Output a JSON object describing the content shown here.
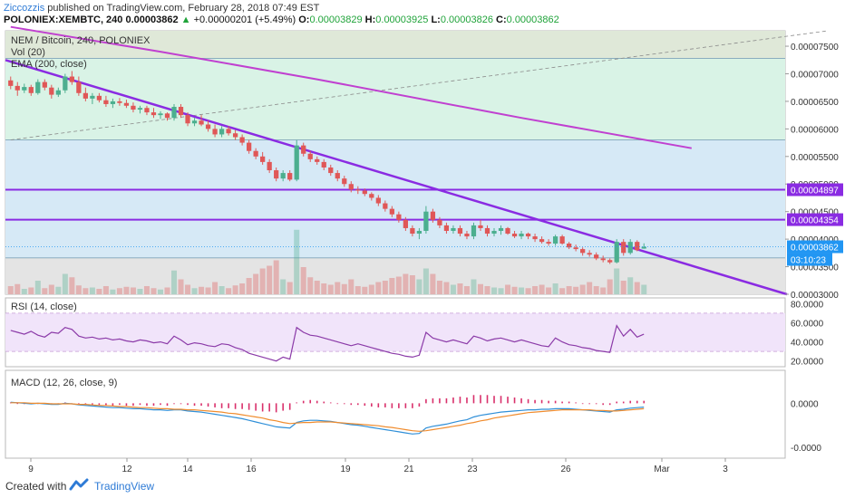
{
  "header": {
    "author": "Ziccozzis",
    "published": " published on TradingView.com, February 28, 2018 07:49 EST",
    "symbol": "POLONIEX:XEMBTC, 240",
    "price": "0.00003862",
    "change": "+0.00000201 (+5.49%)",
    "o_label": "O:",
    "o_value": "0.00003829",
    "h_label": "H:",
    "h_value": "0.00003925",
    "l_label": "L:",
    "l_value": "0.00003826",
    "c_label": "C:",
    "c_value": "0.00003862"
  },
  "footer": {
    "created_with": "Created with",
    "brand": "TradingView"
  },
  "colors": {
    "up": "#4caf8f",
    "down": "#e05757",
    "trend": "#8a2be2",
    "ema": "#c040d0",
    "price_tag": "#2196f3",
    "rsi": "#8b3aa8",
    "macd": "#2f8fd8",
    "signal": "#f08c2e"
  },
  "chart_data": [
    {
      "type": "candlestick",
      "title": "NEM / Bitcoin, 240, POLONIEX",
      "indicator_labels": [
        "Vol (20)",
        "EMA (200, close)"
      ],
      "x_ticks": [
        "9",
        "12",
        "14",
        "16",
        "19",
        "21",
        "23",
        "26",
        "Mar",
        "3"
      ],
      "y_ticks": [
        "0.00007500",
        "0.00007000",
        "0.00006500",
        "0.00006000",
        "0.00005500",
        "0.00005000",
        "0.00004500",
        "0.00004000",
        "0.00003500",
        "0.00003000"
      ],
      "ylim": [
        3e-05,
        7.78e-05
      ],
      "price_tags": [
        "0.00004897",
        "0.00004354",
        "0.00003862",
        "03:10:23"
      ],
      "horizontal_levels": [
        4.897e-05,
        4.354e-05
      ],
      "zone_lines": [
        7.28e-05,
        5.8e-05,
        3.66e-05
      ],
      "candles": [
        [
          6.88e-05,
          6.95e-05,
          6.72e-05,
          6.78e-05
        ],
        [
          6.78e-05,
          6.85e-05,
          6.6e-05,
          6.7e-05
        ],
        [
          6.7e-05,
          6.82e-05,
          6.65e-05,
          6.76e-05
        ],
        [
          6.76e-05,
          6.8e-05,
          6.6e-05,
          6.65e-05
        ],
        [
          6.65e-05,
          6.9e-05,
          6.62e-05,
          6.85e-05
        ],
        [
          6.85e-05,
          6.9e-05,
          6.7e-05,
          6.75e-05
        ],
        [
          6.75e-05,
          6.8e-05,
          6.55e-05,
          6.62e-05
        ],
        [
          6.62e-05,
          6.75e-05,
          6.58e-05,
          6.7e-05
        ],
        [
          6.7e-05,
          7e-05,
          6.65e-05,
          6.95e-05
        ],
        [
          6.95e-05,
          7.05e-05,
          6.8e-05,
          6.85e-05
        ],
        [
          6.85e-05,
          6.95e-05,
          6.6e-05,
          6.65e-05
        ],
        [
          6.65e-05,
          6.75e-05,
          6.5e-05,
          6.55e-05
        ],
        [
          6.55e-05,
          6.65e-05,
          6.45e-05,
          6.6e-05
        ],
        [
          6.6e-05,
          6.65e-05,
          6.48e-05,
          6.52e-05
        ],
        [
          6.52e-05,
          6.6e-05,
          6.4e-05,
          6.45e-05
        ],
        [
          6.45e-05,
          6.55e-05,
          6.38e-05,
          6.5e-05
        ],
        [
          6.5e-05,
          6.56e-05,
          6.42e-05,
          6.47e-05
        ],
        [
          6.47e-05,
          6.53e-05,
          6.38e-05,
          6.42e-05
        ],
        [
          6.42e-05,
          6.48e-05,
          6.3e-05,
          6.35e-05
        ],
        [
          6.35e-05,
          6.42e-05,
          6.28e-05,
          6.38e-05
        ],
        [
          6.38e-05,
          6.42e-05,
          6.25e-05,
          6.3e-05
        ],
        [
          6.3e-05,
          6.38e-05,
          6.2e-05,
          6.25e-05
        ],
        [
          6.25e-05,
          6.32e-05,
          6.18e-05,
          6.28e-05
        ],
        [
          6.28e-05,
          6.3e-05,
          6.15e-05,
          6.2e-05
        ],
        [
          6.2e-05,
          6.45e-05,
          6.15e-05,
          6.4e-05
        ],
        [
          6.4e-05,
          6.45e-05,
          6.2e-05,
          6.25e-05
        ],
        [
          6.25e-05,
          6.3e-05,
          6.05e-05,
          6.1e-05
        ],
        [
          6.1e-05,
          6.2e-05,
          6.05e-05,
          6.15e-05
        ],
        [
          6.15e-05,
          6.25e-05,
          6.05e-05,
          6.08e-05
        ],
        [
          6.08e-05,
          6.15e-05,
          5.95e-05,
          6e-05
        ],
        [
          6e-05,
          6.08e-05,
          5.85e-05,
          5.9e-05
        ],
        [
          5.9e-05,
          6.05e-05,
          5.85e-05,
          6e-05
        ],
        [
          6e-05,
          6.05e-05,
          5.88e-05,
          5.92e-05
        ],
        [
          5.92e-05,
          5.98e-05,
          5.8e-05,
          5.85e-05
        ],
        [
          5.85e-05,
          5.9e-05,
          5.7e-05,
          5.75e-05
        ],
        [
          5.75e-05,
          5.8e-05,
          5.55e-05,
          5.6e-05
        ],
        [
          5.6e-05,
          5.65e-05,
          5.45e-05,
          5.5e-05
        ],
        [
          5.5e-05,
          5.58e-05,
          5.35e-05,
          5.4e-05
        ],
        [
          5.4e-05,
          5.45e-05,
          5.2e-05,
          5.25e-05
        ],
        [
          5.25e-05,
          5.3e-05,
          5.05e-05,
          5.1e-05
        ],
        [
          5.1e-05,
          5.25e-05,
          5.05e-05,
          5.2e-05
        ],
        [
          5.2e-05,
          5.25e-05,
          5.05e-05,
          5.08e-05
        ],
        [
          5.08e-05,
          5.8e-05,
          5.05e-05,
          5.7e-05
        ],
        [
          5.7e-05,
          5.75e-05,
          5.5e-05,
          5.55e-05
        ],
        [
          5.55e-05,
          5.6e-05,
          5.4e-05,
          5.45e-05
        ],
        [
          5.45e-05,
          5.5e-05,
          5.35e-05,
          5.4e-05
        ],
        [
          5.4e-05,
          5.45e-05,
          5.25e-05,
          5.3e-05
        ],
        [
          5.3e-05,
          5.35e-05,
          5.15e-05,
          5.2e-05
        ],
        [
          5.2e-05,
          5.25e-05,
          5.05e-05,
          5.1e-05
        ],
        [
          5.1e-05,
          5.15e-05,
          4.95e-05,
          5e-05
        ],
        [
          5e-05,
          5.05e-05,
          4.85e-05,
          4.9e-05
        ],
        [
          4.9e-05,
          4.96e-05,
          4.82e-05,
          4.88e-05
        ],
        [
          4.88e-05,
          4.92e-05,
          4.78e-05,
          4.82e-05
        ],
        [
          4.82e-05,
          4.85e-05,
          4.7e-05,
          4.75e-05
        ],
        [
          4.75e-05,
          4.8e-05,
          4.6e-05,
          4.65e-05
        ],
        [
          4.65e-05,
          4.7e-05,
          4.5e-05,
          4.55e-05
        ],
        [
          4.55e-05,
          4.6e-05,
          4.4e-05,
          4.45e-05
        ],
        [
          4.45e-05,
          4.5e-05,
          4.3e-05,
          4.35e-05
        ],
        [
          4.35e-05,
          4.4e-05,
          4.15e-05,
          4.2e-05
        ],
        [
          4.2e-05,
          4.25e-05,
          4.05e-05,
          4.1e-05
        ],
        [
          4.1e-05,
          4.2e-05,
          4e-05,
          4.15e-05
        ],
        [
          4.15e-05,
          4.6e-05,
          4.1e-05,
          4.5e-05
        ],
        [
          4.5e-05,
          4.55e-05,
          4.3e-05,
          4.35e-05
        ],
        [
          4.35e-05,
          4.4e-05,
          4.2e-05,
          4.25e-05
        ],
        [
          4.25e-05,
          4.3e-05,
          4.1e-05,
          4.15e-05
        ],
        [
          4.15e-05,
          4.25e-05,
          4.1e-05,
          4.2e-05
        ],
        [
          4.2e-05,
          4.25e-05,
          4.05e-05,
          4.1e-05
        ],
        [
          4.1e-05,
          4.15e-05,
          4e-05,
          4.05e-05
        ],
        [
          4.05e-05,
          4.3e-05,
          4e-05,
          4.25e-05
        ],
        [
          4.25e-05,
          4.35e-05,
          4.15e-05,
          4.2e-05
        ],
        [
          4.2e-05,
          4.25e-05,
          4.05e-05,
          4.1e-05
        ],
        [
          4.1e-05,
          4.2e-05,
          4.05e-05,
          4.15e-05
        ],
        [
          4.15e-05,
          4.25e-05,
          4.08e-05,
          4.2e-05
        ],
        [
          4.2e-05,
          4.22e-05,
          4.08e-05,
          4.1e-05
        ],
        [
          4.1e-05,
          4.15e-05,
          4.02e-05,
          4.05e-05
        ],
        [
          4.05e-05,
          4.15e-05,
          4e-05,
          4.1e-05
        ],
        [
          4.1e-05,
          4.12e-05,
          4e-05,
          4.05e-05
        ],
        [
          4.05e-05,
          4.1e-05,
          3.95e-05,
          4e-05
        ],
        [
          4e-05,
          4.05e-05,
          3.92e-05,
          3.95e-05
        ],
        [
          3.95e-05,
          4e-05,
          3.88e-05,
          3.92e-05
        ],
        [
          3.92e-05,
          4.08e-05,
          3.88e-05,
          4.05e-05
        ],
        [
          4.05e-05,
          4.08e-05,
          3.9e-05,
          3.92e-05
        ],
        [
          3.92e-05,
          3.95e-05,
          3.82e-05,
          3.85e-05
        ],
        [
          3.85e-05,
          3.9e-05,
          3.78e-05,
          3.82e-05
        ],
        [
          3.82e-05,
          3.85e-05,
          3.7e-05,
          3.75e-05
        ],
        [
          3.75e-05,
          3.8e-05,
          3.68e-05,
          3.72e-05
        ],
        [
          3.72e-05,
          3.76e-05,
          3.62e-05,
          3.65e-05
        ],
        [
          3.65e-05,
          3.7e-05,
          3.58e-05,
          3.62e-05
        ],
        [
          3.62e-05,
          3.65e-05,
          3.55e-05,
          3.58e-05
        ],
        [
          3.58e-05,
          4e-05,
          3.56e-05,
          3.95e-05
        ],
        [
          3.95e-05,
          4e-05,
          3.7e-05,
          3.75e-05
        ],
        [
          3.75e-05,
          4e-05,
          3.72e-05,
          3.95e-05
        ],
        [
          3.95e-05,
          3.98e-05,
          3.78e-05,
          3.8e-05
        ],
        [
          3.829e-05,
          3.925e-05,
          3.826e-05,
          3.862e-05
        ]
      ],
      "volumes": [
        12,
        15,
        8,
        10,
        20,
        9,
        14,
        11,
        30,
        25,
        13,
        9,
        10,
        8,
        12,
        7,
        9,
        11,
        10,
        8,
        12,
        9,
        7,
        10,
        35,
        22,
        14,
        9,
        11,
        10,
        18,
        12,
        9,
        13,
        16,
        24,
        30,
        38,
        42,
        50,
        22,
        18,
        95,
        40,
        25,
        20,
        16,
        14,
        18,
        15,
        22,
        12,
        11,
        14,
        18,
        20,
        24,
        26,
        30,
        28,
        22,
        38,
        30,
        20,
        18,
        14,
        16,
        12,
        22,
        15,
        12,
        10,
        9,
        14,
        11,
        10,
        9,
        12,
        14,
        10,
        16,
        9,
        12,
        11,
        14,
        18,
        12,
        10,
        22,
        38,
        20,
        25,
        18,
        14
      ],
      "ema200": [
        [
          7.85e-05,
          0
        ],
        [
          7.4e-05,
          22
        ],
        [
          6.9e-05,
          45
        ],
        [
          6.2e-05,
          75
        ],
        [
          5.65e-05,
          100
        ]
      ],
      "trendline_main": [
        [
          7.25e-05,
          0
        ],
        [
          3e-05,
          114
        ]
      ],
      "trendline_dashed": [
        [
          5.8e-05,
          0
        ],
        [
          7.78e-05,
          120
        ]
      ]
    },
    {
      "type": "line",
      "title": "RSI (14, close)",
      "y_ticks": [
        "80.0000",
        "60.0000",
        "40.0000",
        "20.0000"
      ],
      "ylim": [
        14,
        86
      ],
      "band": [
        30,
        70
      ],
      "values": [
        52,
        50,
        48,
        51,
        47,
        45,
        50,
        49,
        55,
        53,
        46,
        44,
        45,
        43,
        44,
        42,
        43,
        41,
        40,
        42,
        41,
        39,
        40,
        38,
        46,
        42,
        37,
        39,
        38,
        36,
        35,
        38,
        37,
        34,
        32,
        28,
        26,
        24,
        22,
        20,
        24,
        22,
        55,
        50,
        47,
        46,
        44,
        42,
        40,
        38,
        36,
        38,
        36,
        34,
        32,
        30,
        28,
        27,
        25,
        24,
        26,
        50,
        44,
        42,
        40,
        42,
        40,
        38,
        46,
        44,
        41,
        43,
        44,
        42,
        40,
        42,
        40,
        38,
        36,
        35,
        44,
        40,
        37,
        36,
        34,
        33,
        31,
        30,
        29,
        57,
        46,
        53,
        45,
        48
      ]
    },
    {
      "type": "line",
      "title": "MACD (12, 26, close, 9)",
      "y_ticks": [
        "0.0000",
        "-0.0000"
      ],
      "ylim": [
        -1.0,
        0.6
      ],
      "macd": [
        0.02,
        0.01,
        0.0,
        -0.01,
        0.0,
        -0.01,
        -0.02,
        -0.02,
        0.0,
        -0.01,
        -0.03,
        -0.04,
        -0.05,
        -0.06,
        -0.07,
        -0.08,
        -0.08,
        -0.09,
        -0.1,
        -0.1,
        -0.11,
        -0.12,
        -0.12,
        -0.13,
        -0.12,
        -0.12,
        -0.14,
        -0.15,
        -0.16,
        -0.18,
        -0.2,
        -0.22,
        -0.24,
        -0.26,
        -0.28,
        -0.31,
        -0.34,
        -0.37,
        -0.4,
        -0.43,
        -0.44,
        -0.45,
        -0.35,
        -0.32,
        -0.31,
        -0.31,
        -0.32,
        -0.33,
        -0.35,
        -0.37,
        -0.39,
        -0.4,
        -0.42,
        -0.44,
        -0.46,
        -0.48,
        -0.5,
        -0.52,
        -0.54,
        -0.56,
        -0.55,
        -0.45,
        -0.42,
        -0.4,
        -0.38,
        -0.35,
        -0.32,
        -0.3,
        -0.25,
        -0.22,
        -0.2,
        -0.18,
        -0.16,
        -0.15,
        -0.14,
        -0.13,
        -0.12,
        -0.12,
        -0.11,
        -0.11,
        -0.1,
        -0.1,
        -0.1,
        -0.11,
        -0.12,
        -0.13,
        -0.14,
        -0.15,
        -0.16,
        -0.12,
        -0.11,
        -0.09,
        -0.08,
        -0.07
      ],
      "signal": [
        0.01,
        0.01,
        0.01,
        0.0,
        0.0,
        0.0,
        -0.01,
        -0.01,
        -0.01,
        -0.01,
        -0.02,
        -0.02,
        -0.03,
        -0.04,
        -0.04,
        -0.05,
        -0.06,
        -0.06,
        -0.07,
        -0.08,
        -0.08,
        -0.09,
        -0.1,
        -0.1,
        -0.11,
        -0.11,
        -0.12,
        -0.12,
        -0.13,
        -0.14,
        -0.15,
        -0.16,
        -0.18,
        -0.19,
        -0.21,
        -0.23,
        -0.25,
        -0.27,
        -0.3,
        -0.32,
        -0.35,
        -0.37,
        -0.36,
        -0.35,
        -0.35,
        -0.34,
        -0.34,
        -0.34,
        -0.35,
        -0.36,
        -0.37,
        -0.38,
        -0.39,
        -0.4,
        -0.41,
        -0.43,
        -0.44,
        -0.46,
        -0.48,
        -0.5,
        -0.51,
        -0.5,
        -0.48,
        -0.46,
        -0.44,
        -0.42,
        -0.4,
        -0.37,
        -0.35,
        -0.32,
        -0.3,
        -0.27,
        -0.25,
        -0.23,
        -0.21,
        -0.19,
        -0.17,
        -0.16,
        -0.15,
        -0.14,
        -0.13,
        -0.12,
        -0.12,
        -0.12,
        -0.12,
        -0.12,
        -0.13,
        -0.13,
        -0.14,
        -0.14,
        -0.13,
        -0.12,
        -0.11,
        -0.1
      ],
      "histogram": [
        0.01,
        0.0,
        -0.01,
        -0.01,
        0.0,
        -0.01,
        -0.01,
        -0.01,
        0.01,
        0.0,
        -0.01,
        -0.02,
        -0.02,
        -0.02,
        -0.03,
        -0.03,
        -0.02,
        -0.03,
        -0.03,
        -0.02,
        -0.03,
        -0.03,
        -0.02,
        -0.03,
        -0.01,
        -0.01,
        -0.02,
        -0.03,
        -0.03,
        -0.04,
        -0.05,
        -0.06,
        -0.06,
        -0.07,
        -0.07,
        -0.08,
        -0.09,
        -0.1,
        -0.1,
        -0.11,
        -0.09,
        -0.08,
        0.01,
        0.03,
        0.04,
        0.03,
        0.02,
        0.01,
        0.0,
        -0.01,
        -0.02,
        -0.02,
        -0.03,
        -0.04,
        -0.05,
        -0.05,
        -0.06,
        -0.06,
        -0.06,
        -0.06,
        -0.04,
        0.05,
        0.06,
        0.06,
        0.06,
        0.07,
        0.08,
        0.07,
        0.1,
        0.1,
        0.1,
        0.09,
        0.09,
        0.08,
        0.07,
        0.06,
        0.05,
        0.04,
        0.04,
        0.03,
        0.03,
        0.02,
        0.02,
        0.01,
        0.0,
        -0.01,
        -0.01,
        -0.02,
        -0.02,
        0.02,
        0.02,
        0.03,
        0.03,
        0.03
      ]
    }
  ]
}
